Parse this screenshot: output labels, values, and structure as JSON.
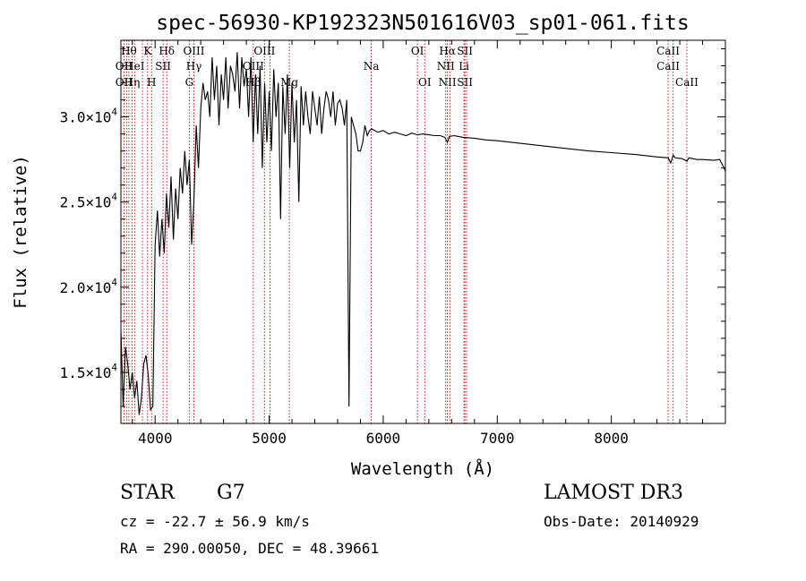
{
  "chart_data": {
    "type": "line",
    "title": "spec-56930-KP192323N501616V03_sp01-061.fits",
    "xlabel": "Wavelength (Å)",
    "ylabel": "Flux (relative)",
    "xlim": [
      3700,
      9000
    ],
    "ylim": [
      12000,
      34500
    ],
    "x_ticks": [
      4000,
      5000,
      6000,
      7000,
      8000
    ],
    "x_tick_labels": [
      "4000",
      "5000",
      "6000",
      "7000",
      "8000"
    ],
    "y_ticks": [
      15000,
      20000,
      25000,
      30000
    ],
    "y_tick_labels": [
      {
        "mantissa": "1.5",
        "exponent": "4"
      },
      {
        "mantissa": "2.0",
        "exponent": "4"
      },
      {
        "mantissa": "2.5",
        "exponent": "4"
      },
      {
        "mantissa": "3.0",
        "exponent": "4"
      }
    ],
    "line_color": "#000000",
    "marker_color": "#cc0000",
    "series": [
      {
        "name": "flux",
        "x": [
          3700,
          3720,
          3740,
          3760,
          3780,
          3800,
          3820,
          3840,
          3860,
          3880,
          3900,
          3920,
          3940,
          3960,
          3980,
          4000,
          4020,
          4040,
          4060,
          4080,
          4100,
          4120,
          4140,
          4160,
          4180,
          4200,
          4220,
          4240,
          4260,
          4280,
          4300,
          4320,
          4340,
          4360,
          4380,
          4400,
          4420,
          4440,
          4460,
          4480,
          4500,
          4520,
          4540,
          4560,
          4580,
          4600,
          4620,
          4640,
          4660,
          4680,
          4700,
          4720,
          4740,
          4760,
          4780,
          4800,
          4820,
          4840,
          4860,
          4880,
          4900,
          4920,
          4940,
          4960,
          4980,
          5000,
          5020,
          5040,
          5060,
          5080,
          5100,
          5120,
          5140,
          5160,
          5180,
          5200,
          5220,
          5240,
          5260,
          5280,
          5300,
          5320,
          5340,
          5360,
          5380,
          5400,
          5420,
          5440,
          5460,
          5480,
          5500,
          5520,
          5540,
          5560,
          5580,
          5600,
          5620,
          5640,
          5660,
          5680,
          5700,
          5720,
          5740,
          5760,
          5780,
          5800,
          5820,
          5840,
          5860,
          5880,
          5900,
          5950,
          6000,
          6050,
          6100,
          6150,
          6200,
          6250,
          6300,
          6350,
          6400,
          6450,
          6500,
          6540,
          6563,
          6580,
          6620,
          6700,
          6800,
          6900,
          7000,
          7200,
          7400,
          7600,
          7800,
          8000,
          8200,
          8400,
          8498,
          8520,
          8542,
          8560,
          8620,
          8662,
          8680,
          8750,
          8800,
          8900,
          8950,
          8990,
          9000
        ],
        "y": [
          17500,
          13000,
          16500,
          15500,
          14000,
          15000,
          13500,
          14500,
          12500,
          13500,
          15500,
          16000,
          14800,
          12800,
          13000,
          22500,
          24500,
          21800,
          24000,
          22000,
          25500,
          23500,
          26500,
          22800,
          25800,
          24000,
          27000,
          25500,
          28000,
          26000,
          27500,
          22500,
          25000,
          29500,
          27000,
          30500,
          32000,
          31000,
          31500,
          30000,
          33500,
          31000,
          33000,
          29500,
          32500,
          31000,
          33500,
          30500,
          33000,
          32500,
          31500,
          33800,
          30500,
          33500,
          31800,
          32800,
          30000,
          33500,
          28500,
          32500,
          29000,
          33000,
          27000,
          32000,
          28500,
          31500,
          28000,
          32800,
          30000,
          32000,
          24000,
          31800,
          29000,
          32500,
          27000,
          32000,
          28500,
          31000,
          25000,
          31800,
          29500,
          31500,
          30000,
          29000,
          31500,
          30500,
          29500,
          31200,
          29000,
          30500,
          31500,
          31000,
          30000,
          31500,
          29500,
          30800,
          31000,
          30500,
          29500,
          31000,
          13000,
          30000,
          29500,
          29000,
          28000,
          28000,
          28500,
          29500,
          28900,
          29200,
          29300,
          29100,
          29200,
          29000,
          29100,
          29000,
          28900,
          29050,
          28950,
          29000,
          28950,
          28900,
          28900,
          28800,
          28500,
          28850,
          28900,
          28800,
          28750,
          28650,
          28600,
          28450,
          28300,
          28150,
          28000,
          27900,
          27800,
          27650,
          27600,
          27300,
          27750,
          27600,
          27550,
          27400,
          27600,
          27500,
          27500,
          27450,
          27500,
          27000,
          26800
        ]
      }
    ],
    "line_markers": [
      {
        "x": 3727,
        "labels": [
          "OII",
          ""
        ]
      },
      {
        "x": 3750,
        "labels": [
          "",
          "OII"
        ]
      },
      {
        "x": 3770,
        "labels": [
          "Hθ",
          ""
        ]
      },
      {
        "x": 3798,
        "labels": [
          "",
          "Hη"
        ]
      },
      {
        "x": 3820,
        "labels": [
          "HeI",
          ""
        ]
      },
      {
        "x": 3889,
        "labels": [
          "",
          ""
        ]
      },
      {
        "x": 3934,
        "labels": [
          "K",
          ""
        ]
      },
      {
        "x": 3969,
        "labels": [
          "",
          "H"
        ]
      },
      {
        "x": 4070,
        "labels": [
          "SII",
          ""
        ]
      },
      {
        "x": 4102,
        "labels": [
          "Hδ",
          ""
        ]
      },
      {
        "x": 4300,
        "labels": [
          "",
          "G"
        ]
      },
      {
        "x": 4340,
        "labels": [
          "OIII",
          "Hγ"
        ]
      },
      {
        "x": 4861,
        "labels": [
          "OIII",
          "Hβ"
        ]
      },
      {
        "x": 4959,
        "labels": [
          "OIII",
          ""
        ]
      },
      {
        "x": 5007,
        "labels": [
          "",
          ""
        ]
      },
      {
        "x": 5177,
        "labels": [
          "Mg",
          ""
        ]
      },
      {
        "x": 5895,
        "labels": [
          "Na",
          ""
        ]
      },
      {
        "x": 6300,
        "labels": [
          "OI",
          ""
        ]
      },
      {
        "x": 6364,
        "labels": [
          "",
          "OI"
        ]
      },
      {
        "x": 6548,
        "labels": [
          "NII",
          ""
        ]
      },
      {
        "x": 6563,
        "labels": [
          "Hα",
          "NII"
        ]
      },
      {
        "x": 6584,
        "labels": [
          "",
          ""
        ]
      },
      {
        "x": 6708,
        "labels": [
          "Li",
          ""
        ]
      },
      {
        "x": 6716,
        "labels": [
          "SII",
          "SII"
        ]
      },
      {
        "x": 6731,
        "labels": [
          "",
          ""
        ]
      },
      {
        "x": 8498,
        "labels": [
          "CaII",
          "CaII"
        ]
      },
      {
        "x": 8542,
        "labels": [
          "",
          ""
        ]
      },
      {
        "x": 8662,
        "labels": [
          "",
          "CaII"
        ]
      }
    ],
    "line_marker_top_labels": [
      {
        "x": 3770,
        "text": "Hθ"
      },
      {
        "x": 3934,
        "text": "K"
      },
      {
        "x": 4102,
        "text": "Hδ"
      },
      {
        "x": 4340,
        "text": "OIII"
      },
      {
        "x": 4959,
        "text": "OIII"
      },
      {
        "x": 6300,
        "text": "OI"
      },
      {
        "x": 6563,
        "text": "Hα"
      },
      {
        "x": 6716,
        "text": "SII"
      },
      {
        "x": 8498,
        "text": "CaII"
      }
    ],
    "line_marker_mid_labels": [
      {
        "x": 3727,
        "text": "OII"
      },
      {
        "x": 3820,
        "text": "HeI"
      },
      {
        "x": 4070,
        "text": "SII"
      },
      {
        "x": 4340,
        "text": "Hγ"
      },
      {
        "x": 4861,
        "text": "OIII"
      },
      {
        "x": 5895,
        "text": "Na"
      },
      {
        "x": 6548,
        "text": "NII"
      },
      {
        "x": 6708,
        "text": "Li"
      },
      {
        "x": 8498,
        "text": "CaII"
      }
    ],
    "line_marker_low_labels": [
      {
        "x": 3727,
        "text": "OII"
      },
      {
        "x": 3798,
        "text": "Hη"
      },
      {
        "x": 3969,
        "text": "H"
      },
      {
        "x": 4300,
        "text": "G"
      },
      {
        "x": 4861,
        "text": "Hβ"
      },
      {
        "x": 5177,
        "text": "Mg"
      },
      {
        "x": 6364,
        "text": "OI"
      },
      {
        "x": 6563,
        "text": "NII"
      },
      {
        "x": 6716,
        "text": "SII"
      },
      {
        "x": 8662,
        "text": "CaII"
      }
    ]
  },
  "footer": {
    "object_class": "STAR",
    "subclass": "G7",
    "survey": "LAMOST DR3",
    "cz": "cz = -22.7 ± 56.9 km/s",
    "obs_date": "Obs-Date: 20140929",
    "coords": "RA = 290.00050, DEC =  48.39661"
  }
}
